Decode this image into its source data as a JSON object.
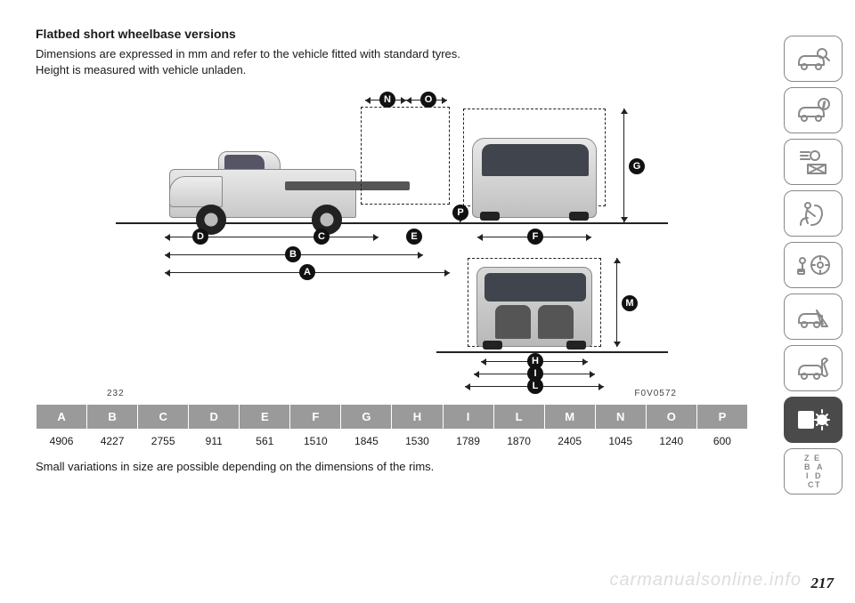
{
  "title": "Flatbed short wheelbase versions",
  "desc_line1": "Dimensions are expressed in mm and refer to the vehicle fitted with standard tyres.",
  "desc_line2": "Height is measured with vehicle unladen.",
  "figure_number": "232",
  "figure_code": "F0V0572",
  "columns": [
    "A",
    "B",
    "C",
    "D",
    "E",
    "F",
    "G",
    "H",
    "I",
    "L",
    "M",
    "N",
    "O",
    "P"
  ],
  "values": [
    "4906",
    "4227",
    "2755",
    "911",
    "561",
    "1510",
    "1845",
    "1530",
    "1789",
    "1870",
    "2405",
    "1045",
    "1240",
    "600"
  ],
  "markers": {
    "N": "N",
    "O": "O",
    "G": "G",
    "P": "P",
    "D": "D",
    "C": "C",
    "E": "E",
    "F": "F",
    "B": "B",
    "A": "A",
    "M": "M",
    "H": "H",
    "I": "I",
    "L": "L"
  },
  "note": "Small variations in size are possible depending on the dimensions of the rims.",
  "page_number": "217",
  "watermark": "carmanualsonline.info",
  "tab_letters": "ZEBADICT"
}
